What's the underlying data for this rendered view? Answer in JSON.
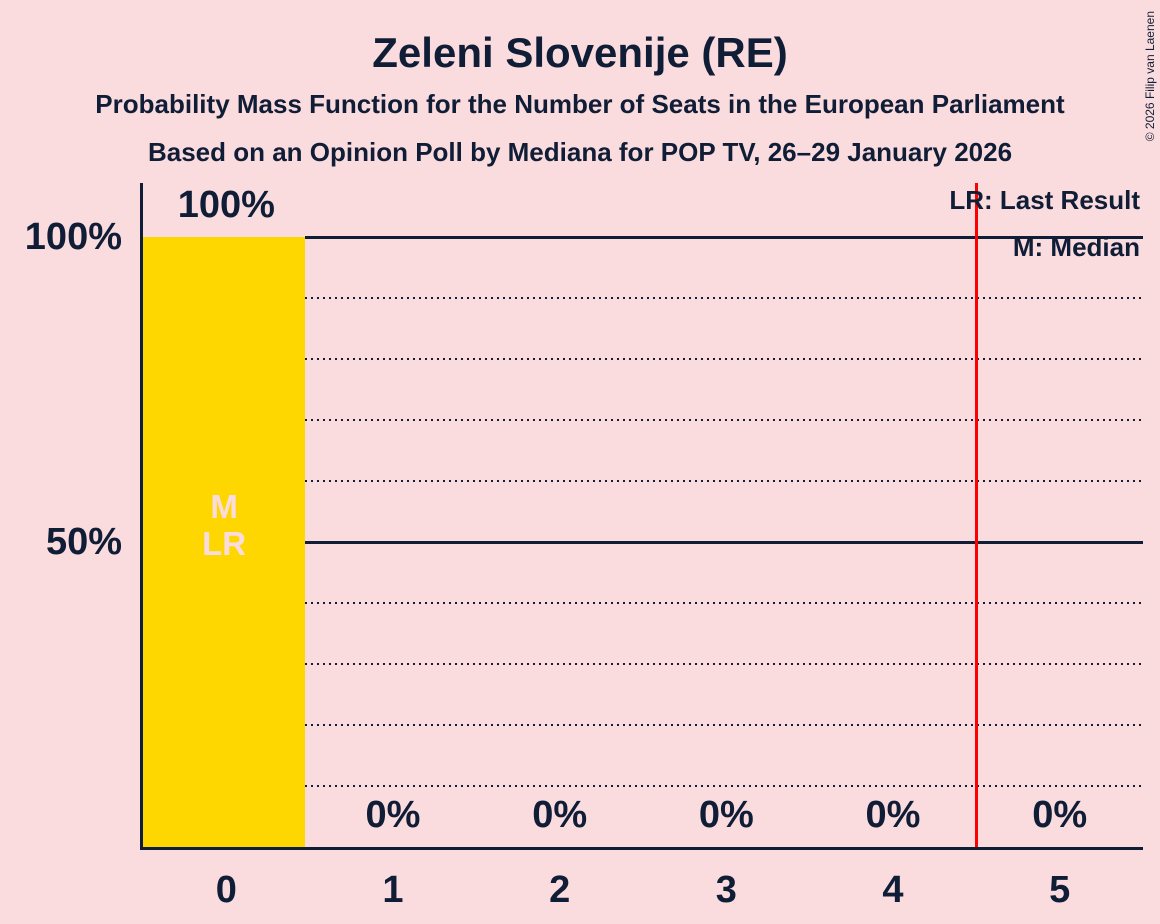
{
  "copyright": "© 2026 Filip van Laenen",
  "chart_data": {
    "type": "bar",
    "title": "Zeleni Slovenije (RE)",
    "subtitle": "Probability Mass Function for the Number of Seats in the European Parliament",
    "subtitle2": "Based on an Opinion Poll by Mediana for POP TV, 26–29 January 2026",
    "categories": [
      "0",
      "1",
      "2",
      "3",
      "4",
      "5"
    ],
    "values": [
      100,
      0,
      0,
      0,
      0,
      0
    ],
    "bar_value_labels": [
      "100%",
      "0%",
      "0%",
      "0%",
      "0%",
      "0%"
    ],
    "y_ticks": [
      {
        "value": 100,
        "label": "100%"
      },
      {
        "value": 50,
        "label": "50%"
      }
    ],
    "grid_ticks": [
      10,
      20,
      30,
      40,
      50,
      60,
      70,
      80,
      90,
      100
    ],
    "ylim": [
      0,
      100
    ],
    "grid": true,
    "legend_position": "top-right",
    "legend": {
      "last_result": "LR: Last Result",
      "median": "M: Median"
    },
    "median_label": "M",
    "last_result_label": "LR",
    "median_seats": 0,
    "last_result_seats": 0,
    "threshold_line_x": 4.5,
    "colors": {
      "background": "#FBDCDE",
      "bar": "#FFD700",
      "text": "#101D36",
      "threshold_line": "#FF0000",
      "bar_inner_label": "#FBDCDE"
    }
  }
}
